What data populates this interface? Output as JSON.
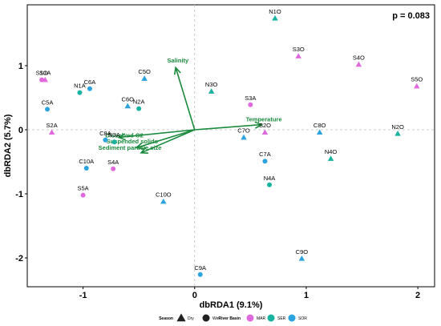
{
  "chart_data": {
    "type": "scatter",
    "annotation": "p = 0.083",
    "xlabel": "dbRDA1 (9.1%)",
    "ylabel": "dbRDA2 (5.7%)",
    "xlim": [
      -1.5,
      2.15
    ],
    "ylim": [
      -2.45,
      1.95
    ],
    "xticks": [
      -1,
      0,
      1,
      2
    ],
    "yticks": [
      -2,
      -1,
      0,
      1
    ],
    "xtick_labels": [
      "-1",
      "0",
      "1",
      "2"
    ],
    "ytick_labels": [
      "-2",
      "-1",
      "0",
      "1"
    ],
    "colors": {
      "MAR": "#e069dd",
      "SER": "#1ab3a1",
      "SOR": "#2ba3de",
      "vector": "#1a8a3c"
    },
    "points": [
      {
        "label": "N1O",
        "x": 0.72,
        "y": 1.74,
        "season": "Dry",
        "basin": "SER"
      },
      {
        "label": "S3O",
        "x": 0.93,
        "y": 1.15,
        "season": "Dry",
        "basin": "MAR"
      },
      {
        "label": "S4O",
        "x": 1.47,
        "y": 1.02,
        "season": "Dry",
        "basin": "MAR"
      },
      {
        "label": "S5O",
        "x": 1.99,
        "y": 0.68,
        "season": "Dry",
        "basin": "MAR"
      },
      {
        "label": "S1O",
        "x": -1.37,
        "y": 0.78,
        "season": "Wet",
        "basin": "MAR"
      },
      {
        "label": "S1A",
        "x": -1.34,
        "y": 0.78,
        "season": "Dry",
        "basin": "MAR"
      },
      {
        "label": "N1A",
        "x": -1.03,
        "y": 0.58,
        "season": "Wet",
        "basin": "SER"
      },
      {
        "label": "C6A",
        "x": -0.94,
        "y": 0.64,
        "season": "Wet",
        "basin": "SOR"
      },
      {
        "label": "C5O",
        "x": -0.45,
        "y": 0.8,
        "season": "Dry",
        "basin": "SOR"
      },
      {
        "label": "N3O",
        "x": 0.15,
        "y": 0.6,
        "season": "Dry",
        "basin": "SER"
      },
      {
        "label": "C6O",
        "x": -0.6,
        "y": 0.37,
        "season": "Dry",
        "basin": "SOR"
      },
      {
        "label": "N2A",
        "x": -0.5,
        "y": 0.33,
        "season": "Wet",
        "basin": "SER"
      },
      {
        "label": "C5A",
        "x": -1.32,
        "y": 0.32,
        "season": "Wet",
        "basin": "SOR"
      },
      {
        "label": "S3A",
        "x": 0.5,
        "y": 0.39,
        "season": "Wet",
        "basin": "MAR"
      },
      {
        "label": "S2A",
        "x": -1.28,
        "y": -0.04,
        "season": "Dry",
        "basin": "MAR"
      },
      {
        "label": "C8A",
        "x": -0.8,
        "y": -0.16,
        "season": "Wet",
        "basin": "SOR"
      },
      {
        "label": "N3A",
        "x": -0.72,
        "y": -0.19,
        "season": "Wet",
        "basin": "SER"
      },
      {
        "label": "S2O",
        "x": 0.63,
        "y": -0.04,
        "season": "Dry",
        "basin": "MAR"
      },
      {
        "label": "C7O",
        "x": 0.44,
        "y": -0.12,
        "season": "Dry",
        "basin": "SOR"
      },
      {
        "label": "C8O",
        "x": 1.12,
        "y": -0.04,
        "season": "Dry",
        "basin": "SOR"
      },
      {
        "label": "N2O",
        "x": 1.82,
        "y": -0.06,
        "season": "Dry",
        "basin": "SER"
      },
      {
        "label": "N4O",
        "x": 1.22,
        "y": -0.45,
        "season": "Dry",
        "basin": "SER"
      },
      {
        "label": "C7A",
        "x": 0.63,
        "y": -0.49,
        "season": "Wet",
        "basin": "SOR"
      },
      {
        "label": "C10A",
        "x": -0.97,
        "y": -0.6,
        "season": "Wet",
        "basin": "SOR"
      },
      {
        "label": "S4A",
        "x": -0.73,
        "y": -0.61,
        "season": "Wet",
        "basin": "MAR"
      },
      {
        "label": "N4A",
        "x": 0.67,
        "y": -0.86,
        "season": "Wet",
        "basin": "SER"
      },
      {
        "label": "S5A",
        "x": -1.0,
        "y": -1.02,
        "season": "Wet",
        "basin": "MAR"
      },
      {
        "label": "C10O",
        "x": -0.28,
        "y": -1.12,
        "season": "Dry",
        "basin": "SOR"
      },
      {
        "label": "C9O",
        "x": 0.96,
        "y": -2.01,
        "season": "Dry",
        "basin": "SOR"
      },
      {
        "label": "C9A",
        "x": 0.05,
        "y": -2.26,
        "season": "Wet",
        "basin": "SOR"
      }
    ],
    "vectors": [
      {
        "label": "Salinity",
        "x": -0.17,
        "y": 0.97
      },
      {
        "label": "Temperature",
        "x": 0.6,
        "y": 0.08
      },
      {
        "label": "Dissolved O2",
        "x": -0.68,
        "y": -0.12
      },
      {
        "label": "Suspended solids",
        "x": -0.52,
        "y": -0.28
      },
      {
        "label": "Sediment particle size",
        "x": -0.48,
        "y": -0.36
      }
    ],
    "legend": {
      "season_title": "Season",
      "season_items": [
        "Dry",
        "Wet"
      ],
      "basin_title": "River Basin",
      "basin_items": [
        "MAR",
        "SER",
        "SOR"
      ]
    }
  }
}
